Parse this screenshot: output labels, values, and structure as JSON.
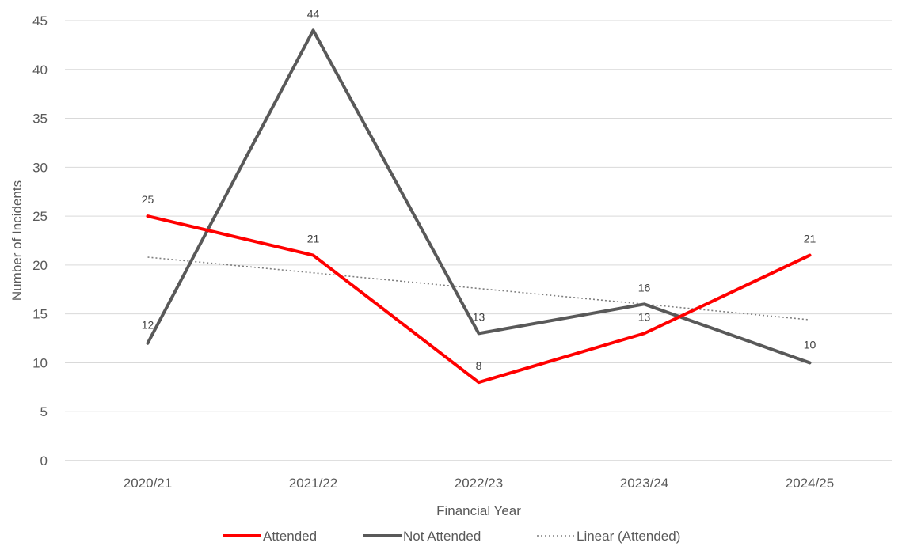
{
  "chart_data": {
    "type": "line",
    "title": "",
    "xlabel": "Financial Year",
    "ylabel": "Number of Incidents",
    "categories": [
      "2020/21",
      "2021/22",
      "2022/23",
      "2023/24",
      "2024/25"
    ],
    "ylim": [
      0,
      45
    ],
    "yticks": [
      0,
      5,
      10,
      15,
      20,
      25,
      30,
      35,
      40,
      45
    ],
    "grid": true,
    "legend_position": "bottom",
    "series": [
      {
        "name": "Attended",
        "values": [
          25,
          21,
          8,
          13,
          21
        ],
        "color": "#ff0000",
        "labels": [
          "25",
          "21",
          "8",
          "13",
          "21"
        ]
      },
      {
        "name": "Not Attended",
        "values": [
          12,
          44,
          13,
          16,
          10
        ],
        "color": "#595959",
        "labels": [
          "12",
          "44",
          "13",
          "16",
          "10"
        ]
      }
    ],
    "trendline": {
      "name": "Linear (Attended)",
      "of_series": "Attended",
      "type": "linear",
      "color": "#7f7f7f"
    }
  }
}
